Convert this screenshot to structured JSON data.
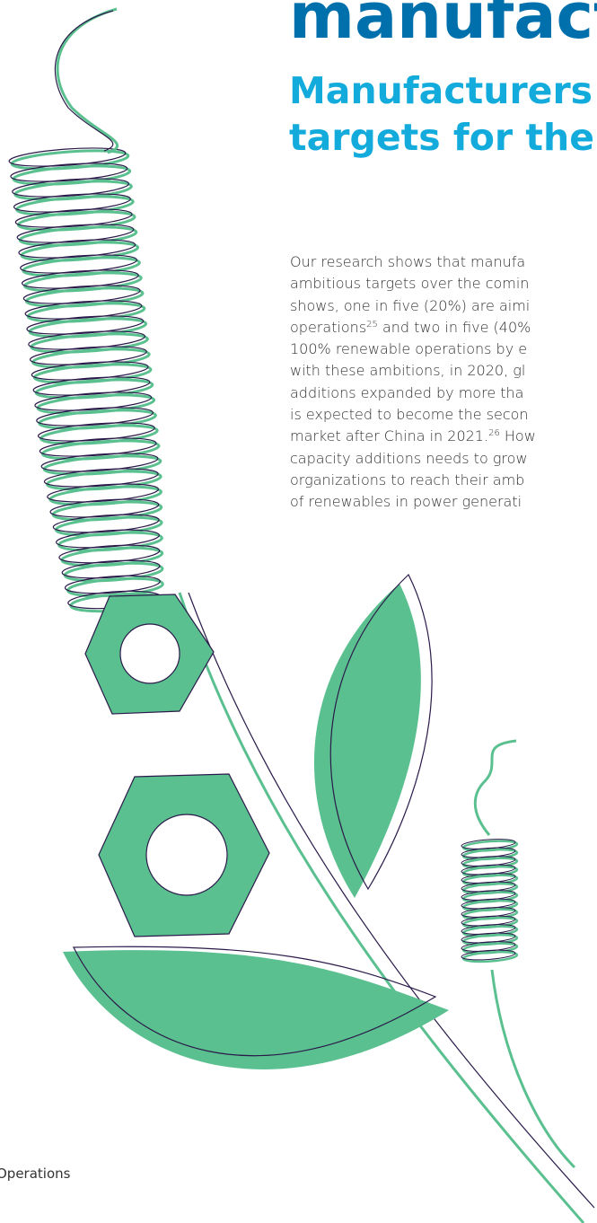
{
  "heading": "manufact",
  "subheading": [
    "Manufacturers",
    "targets for the"
  ],
  "body": {
    "lines": [
      [
        "Our research shows that manufa"
      ],
      [
        "ambitious targets over the comin"
      ],
      [
        "shows, one in five (20%) are aimi"
      ],
      [
        "operations",
        {
          "sup": "25"
        },
        " and two in five (40%"
      ],
      [
        "100% renewable operations by e"
      ],
      [
        "with these ambitions, in 2020, gl"
      ],
      [
        "additions expanded by more tha"
      ],
      [
        "is expected to become the secon"
      ],
      [
        "market after China in 2021.",
        {
          "sup": "26"
        },
        " How"
      ],
      [
        "capacity additions needs to grow"
      ],
      [
        "organizations to reach their amb"
      ],
      [
        "of renewables in power generati"
      ]
    ]
  },
  "footer": "Operations"
}
